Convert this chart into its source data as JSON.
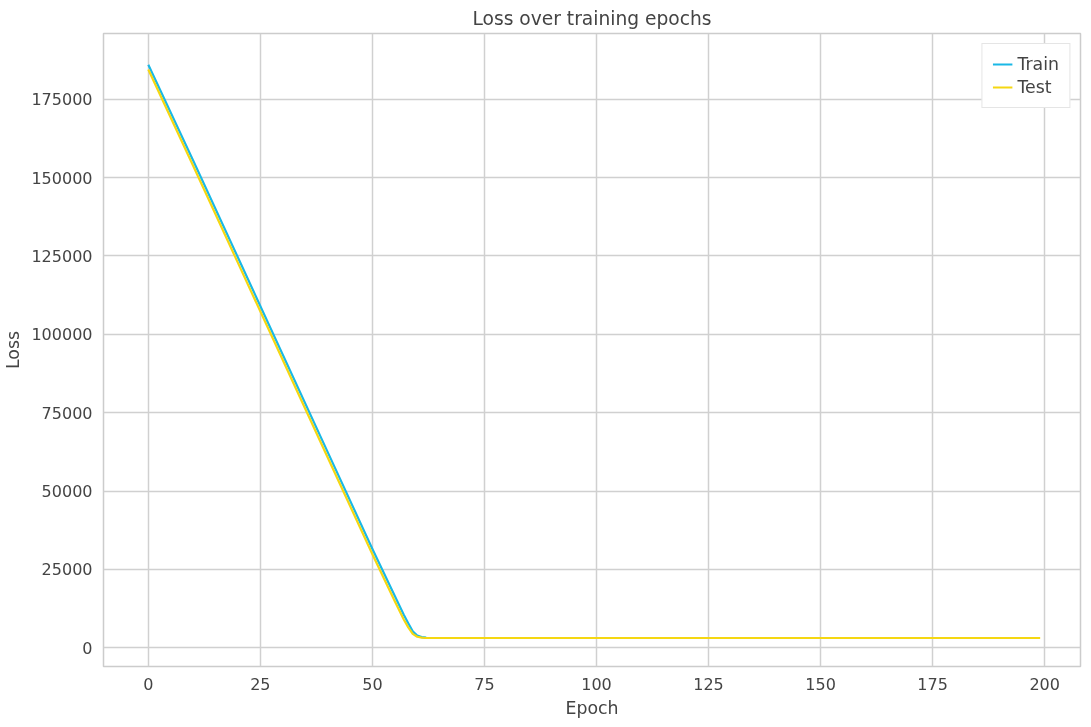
{
  "chart_data": {
    "type": "line",
    "title": "Loss over training epochs",
    "xlabel": "Epoch",
    "ylabel": "Loss",
    "series": [
      {
        "name": "Train",
        "color": "#1ab8e6",
        "x": [
          0,
          10,
          20,
          30,
          40,
          50,
          55,
          57,
          58,
          59,
          60,
          61,
          62
        ],
        "values": [
          186000,
          155500,
          124500,
          93500,
          62500,
          31500,
          16500,
          10500,
          7800,
          5200,
          3900,
          3400,
          3200
        ]
      },
      {
        "name": "Test",
        "color": "#f5d712",
        "x": [
          0,
          10,
          20,
          30,
          40,
          50,
          55,
          57,
          58,
          59,
          60,
          61,
          62,
          63,
          100,
          150,
          199
        ],
        "values": [
          184500,
          153800,
          122800,
          91800,
          60800,
          29800,
          14800,
          9000,
          6500,
          4400,
          3500,
          3200,
          3100,
          3100,
          3100,
          3100,
          3100
        ]
      }
    ],
    "xlim": [
      -10,
      208
    ],
    "ylim": [
      -6000,
      196000
    ],
    "xticks": [
      0,
      25,
      50,
      75,
      100,
      125,
      150,
      175,
      200
    ],
    "yticks": [
      0,
      25000,
      50000,
      75000,
      100000,
      125000,
      150000,
      175000
    ],
    "grid": true,
    "legend": "top right",
    "line_style": "solid",
    "marker": "none"
  }
}
